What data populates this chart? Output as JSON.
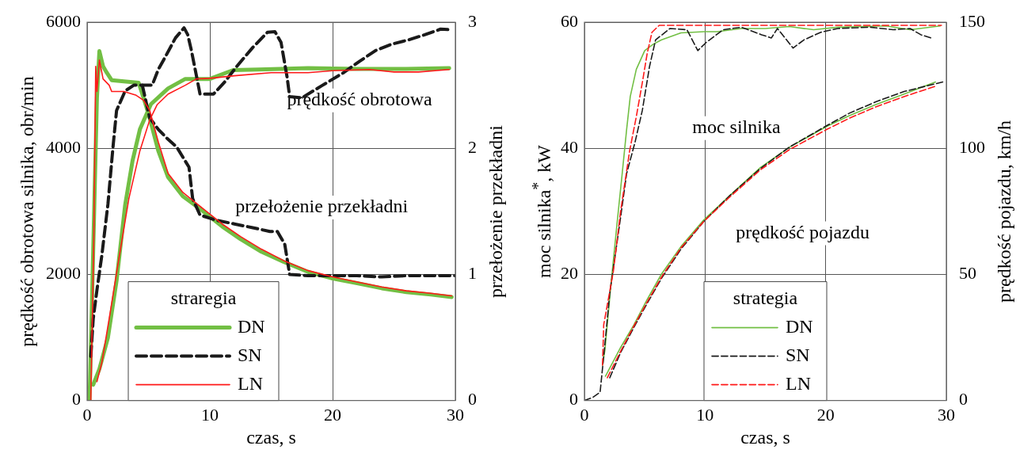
{
  "chart_data": [
    {
      "type": "line",
      "xlabel": "czas, s",
      "ylabel": "prędkość obrotowa silnika, obr/min",
      "y2label": "przełożenie przekładni",
      "legend_title": "straregia",
      "legend": "bottom left",
      "grid": true,
      "xlim": [
        0,
        30
      ],
      "xticks": [
        0,
        10,
        20,
        30
      ],
      "ylim": [
        0,
        6000
      ],
      "yticks": [
        0,
        2000,
        4000,
        6000
      ],
      "y2lim": [
        0,
        3
      ],
      "y2ticks": [
        0,
        1,
        2,
        3
      ],
      "annotations": [
        "prędkość obrotowa",
        "przełożenie przekładni"
      ],
      "series": [
        {
          "name": "DN",
          "color": "#72bf44",
          "line_style": "solid",
          "x": [
            0.5,
            1.0,
            1.7,
            2.4,
            3.1,
            3.7,
            4.3,
            5.2,
            6.6,
            8,
            10,
            11.9,
            14,
            18,
            22,
            26,
            29.5
          ],
          "values": [
            250,
            500,
            1000,
            1900,
            3100,
            3800,
            4300,
            4700,
            4950,
            5100,
            5100,
            5240,
            5250,
            5270,
            5260,
            5260,
            5270
          ]
        },
        {
          "color": "#72bf44",
          "line_style": "solid",
          "axis": "y2",
          "x": [
            0.2,
            0.5,
            0.8,
            1.0,
            1.3,
            1.6,
            2.0,
            3,
            4.2,
            4.6,
            5.1,
            5.8,
            6.6,
            7.8,
            9.2,
            11,
            12.5,
            14.2,
            16,
            18,
            19.9,
            22,
            24,
            26,
            28,
            29.7
          ],
          "values": [
            0,
            1.2,
            2.4,
            2.77,
            2.65,
            2.6,
            2.54,
            2.53,
            2.52,
            2.4,
            2.24,
            1.98,
            1.77,
            1.62,
            1.52,
            1.38,
            1.28,
            1.18,
            1.1,
            1.02,
            0.97,
            0.93,
            0.89,
            0.86,
            0.84,
            0.82
          ]
        },
        {
          "name": "SN",
          "color": "#1a1a1a",
          "line_style": "dashed",
          "x": [
            0.3,
            0.5,
            0.8,
            1.2,
            1.7,
            2.1,
            2.4,
            3.1,
            3.8,
            4.5,
            5.3,
            5.8,
            6.4,
            7.2,
            7.9,
            8.2,
            8.5,
            9.2,
            10.3,
            11.2,
            12.2,
            13.5,
            14.7,
            15.3,
            15.8,
            16.3,
            16.5,
            17.5,
            19.1,
            20.9,
            22.2,
            23.5,
            24.8,
            26.2,
            27.5,
            28.8,
            29.6
          ],
          "values": [
            700,
            1300,
            1750,
            2300,
            3120,
            4000,
            4600,
            4910,
            5000,
            5000,
            5000,
            5250,
            5460,
            5750,
            5910,
            5800,
            5550,
            4860,
            4860,
            5050,
            5300,
            5600,
            5840,
            5850,
            5680,
            5120,
            4820,
            4800,
            4990,
            5200,
            5380,
            5550,
            5650,
            5720,
            5800,
            5890,
            5880
          ]
        },
        {
          "color": "#1a1a1a",
          "line_style": "dashed",
          "axis": "y2",
          "x": [
            4.5,
            5.1,
            5.8,
            6.5,
            7.3,
            8.3,
            8.6,
            9.2,
            10.5,
            12,
            13.5,
            14.9,
            15.5,
            16.1,
            16.5,
            18,
            20,
            22,
            24,
            26,
            28,
            30
          ],
          "values": [
            2.5,
            2.24,
            2.15,
            2.08,
            2.01,
            1.85,
            1.6,
            1.47,
            1.43,
            1.4,
            1.37,
            1.34,
            1.34,
            1.24,
            1.0,
            0.99,
            0.99,
            0.99,
            0.98,
            0.99,
            0.99,
            0.99
          ]
        },
        {
          "name": "LN",
          "color": "#ff1a1a",
          "line_style": "solid",
          "x": [
            0.8,
            1.2,
            1.8,
            2.6,
            3.4,
            4.3,
            5.1,
            5.7,
            6.6,
            8,
            8.9,
            10,
            12,
            15,
            18,
            20,
            23,
            25,
            27,
            29.5
          ],
          "values": [
            300,
            600,
            1300,
            2260,
            3200,
            3960,
            4450,
            4690,
            4860,
            5000,
            5100,
            5110,
            5150,
            5200,
            5200,
            5230,
            5250,
            5210,
            5210,
            5250
          ]
        },
        {
          "color": "#ff1a1a",
          "line_style": "solid",
          "axis": "y2",
          "x": [
            0.3,
            0.55,
            0.7,
            0.8,
            1.0,
            1.3,
            1.8,
            2,
            3,
            4,
            4.6,
            5.1,
            5.8,
            6.6,
            7.8,
            9.2,
            11,
            12.5,
            14.2,
            16,
            18,
            20,
            22,
            24,
            26,
            28,
            29.7
          ],
          "values": [
            0,
            1.3,
            2.65,
            2.45,
            2.7,
            2.55,
            2.5,
            2.45,
            2.45,
            2.42,
            2.38,
            2.3,
            2.05,
            1.8,
            1.65,
            1.54,
            1.4,
            1.3,
            1.2,
            1.11,
            1.03,
            0.98,
            0.94,
            0.9,
            0.87,
            0.85,
            0.83
          ]
        }
      ]
    },
    {
      "type": "line",
      "xlabel": "czas, s",
      "ylabel": "moc silnika$^{*}$, kW",
      "y2label": "prędkość pojazdu, km/h",
      "legend_title": "strategia",
      "legend": "bottom",
      "grid": true,
      "xlim": [
        0,
        30
      ],
      "xticks": [
        0,
        10,
        20,
        30
      ],
      "ylim": [
        0,
        60
      ],
      "yticks": [
        0,
        20,
        40,
        60
      ],
      "y2lim": [
        0,
        150
      ],
      "y2ticks": [
        0,
        50,
        100,
        150
      ],
      "annotations": [
        "moc silnika",
        "prędkość pojazdu"
      ],
      "series": [
        {
          "name": "DN",
          "color": "#72bf44",
          "line_style": "solid",
          "x": [
            1.5,
            1.7,
            2.2,
            2.7,
            3.1,
            3.5,
            3.8,
            4.3,
            5.0,
            5.7,
            6.4,
            8,
            9.9,
            11,
            13,
            15,
            17,
            19,
            21,
            23,
            25,
            27,
            29.5
          ],
          "values": [
            5.6,
            8,
            18.4,
            28,
            35.4,
            43,
            48.2,
            52.5,
            55.5,
            56.5,
            57.2,
            58.3,
            58.5,
            58.5,
            59,
            59,
            59.3,
            58.8,
            59.2,
            59.3,
            59.4,
            58.8,
            59.4
          ]
        },
        {
          "color": "#72bf44",
          "line_style": "solid",
          "axis": "y2",
          "x": [
            1.74,
            3,
            4.1,
            5.2,
            6.4,
            8,
            9.9,
            12,
            14.6,
            17,
            20.1,
            22,
            24.2,
            26.5,
            29.1
          ],
          "values": [
            9.6,
            21,
            30,
            40,
            50.2,
            61,
            71.6,
            81,
            92.4,
            100.4,
            108.7,
            113,
            117.4,
            121.5,
            126.3
          ]
        },
        {
          "name": "SN",
          "color": "#1a1a1a",
          "line_style": "dashed",
          "x": [
            0,
            0.7,
            1.3,
            1.6,
            2.1,
            2.9,
            3.5,
            4.2,
            4.8,
            5.4,
            5.9,
            7.1,
            8.5,
            9.4,
            10.1,
            11.5,
            13,
            14.7,
            15.5,
            16,
            17.3,
            18.2,
            19.6,
            21,
            23.7,
            25.6,
            27,
            27.9,
            28.9
          ],
          "values": [
            0,
            0.5,
            1.3,
            7,
            17,
            27.7,
            36,
            41,
            46,
            53,
            57.2,
            59,
            58.8,
            55.5,
            56.8,
            58.8,
            59.2,
            58,
            57.5,
            59,
            55.9,
            57.2,
            58.4,
            59,
            59.2,
            58.8,
            59,
            58,
            57.4
          ]
        },
        {
          "color": "#1a1a1a",
          "line_style": "dashed",
          "axis": "y2",
          "x": [
            2.1,
            3,
            4.1,
            5.2,
            6.4,
            8,
            9.9,
            12,
            14.6,
            17,
            20.1,
            22,
            24.2,
            26.5,
            29.7
          ],
          "values": [
            9,
            19,
            29,
            38.5,
            48.5,
            60,
            71,
            81,
            92,
            100.5,
            109,
            114,
            118.5,
            122.5,
            126.3
          ]
        },
        {
          "name": "LN",
          "color": "#ff1a1a",
          "line_style": "dashed",
          "x": [
            1.5,
            1.6,
            2.4,
            3.0,
            3.75,
            4.3,
            4.8,
            5.2,
            5.6,
            6.2,
            8,
            12,
            16,
            20,
            24,
            29.6
          ],
          "values": [
            5.6,
            12,
            20.5,
            30,
            39.6,
            45,
            50.4,
            55,
            58.4,
            59.5,
            59.5,
            59.5,
            59.5,
            59.5,
            59.5,
            59.5
          ]
        },
        {
          "color": "#ff1a1a",
          "line_style": "dashed",
          "axis": "y2",
          "x": [
            1.9,
            3,
            4.1,
            5.2,
            6.4,
            8,
            9.9,
            12,
            14.6,
            17,
            20.1,
            22,
            24.2,
            26.5,
            29.1
          ],
          "values": [
            9,
            19.5,
            29.5,
            39,
            49,
            60.5,
            71,
            80.5,
            91.5,
            99.5,
            107.5,
            112,
            116.5,
            120.5,
            124.6
          ]
        }
      ]
    }
  ]
}
